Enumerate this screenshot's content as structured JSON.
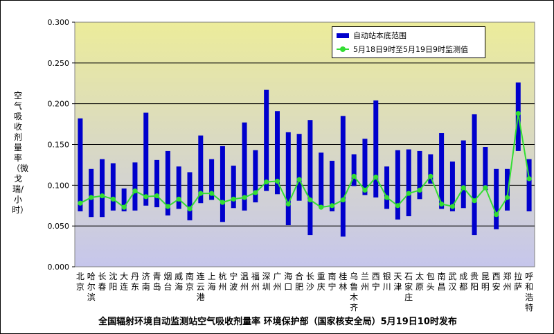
{
  "chart_data": {
    "type": "bar",
    "title": "全国辐射环境自动监测站空气吸收剂量率 环境保护部（国家核安全局）5月19日10时发布",
    "ylabel": "空气吸收剂量率（微戈瑞/小时）",
    "xlabel": "",
    "ylim": [
      0,
      0.3
    ],
    "yticks": [
      "0.000",
      "0.050",
      "0.100",
      "0.150",
      "0.200",
      "0.250",
      "0.300"
    ],
    "grid": true,
    "legend_position": "top-right",
    "colors": {
      "bar": "#0000cc",
      "line": "#33dd33",
      "bg_top": "#ecec9a",
      "bg_bottom": "#c6c6ec"
    },
    "categories": [
      "北京",
      "哈尔滨",
      "长春",
      "沈阳",
      "大连",
      "丹东",
      "济南",
      "青岛",
      "烟台",
      "威海",
      "南京",
      "连云港",
      "上海",
      "杭州",
      "宁波",
      "温州",
      "福州",
      "深圳",
      "广州",
      "海口",
      "合肥",
      "长沙",
      "重庆",
      "南宁",
      "桂林",
      "乌鲁木齐",
      "兰州",
      "西宁",
      "银川",
      "天津",
      "石家庄",
      "太原",
      "包头",
      "南昌",
      "武汉",
      "成都",
      "贵阳",
      "昆明",
      "西安",
      "郑州",
      "拉萨",
      "呼和浩特"
    ],
    "series": [
      {
        "name": "自动站本底范围",
        "kind": "range",
        "low": [
          0.068,
          0.061,
          0.061,
          0.069,
          0.068,
          0.069,
          0.075,
          0.073,
          0.063,
          0.071,
          0.057,
          0.078,
          0.082,
          0.055,
          0.072,
          0.069,
          0.079,
          0.093,
          0.089,
          0.051,
          0.081,
          0.039,
          0.073,
          0.068,
          0.037,
          0.099,
          0.088,
          0.085,
          0.071,
          0.058,
          0.062,
          0.083,
          0.102,
          0.071,
          0.068,
          0.072,
          0.039,
          0.094,
          0.046,
          0.069,
          0.142,
          0.068
        ],
        "high": [
          0.182,
          0.12,
          0.132,
          0.127,
          0.096,
          0.128,
          0.189,
          0.131,
          0.142,
          0.123,
          0.116,
          0.161,
          0.132,
          0.148,
          0.124,
          0.177,
          0.143,
          0.217,
          0.191,
          0.165,
          0.163,
          0.18,
          0.14,
          0.13,
          0.185,
          0.138,
          0.157,
          0.204,
          0.123,
          0.143,
          0.144,
          0.142,
          0.138,
          0.164,
          0.129,
          0.155,
          0.187,
          0.147,
          0.12,
          0.12,
          0.226,
          0.132
        ]
      },
      {
        "name": "5月18日9时至5月19日9时监测值",
        "kind": "line",
        "values": [
          0.078,
          0.085,
          0.087,
          0.083,
          0.073,
          0.093,
          0.086,
          0.087,
          0.074,
          0.083,
          0.071,
          0.09,
          0.09,
          0.079,
          0.083,
          0.085,
          0.091,
          0.104,
          0.105,
          0.077,
          0.107,
          0.082,
          0.073,
          0.075,
          0.082,
          0.111,
          0.094,
          0.11,
          0.085,
          0.075,
          0.09,
          0.094,
          0.111,
          0.077,
          0.074,
          0.097,
          0.081,
          0.097,
          0.064,
          0.085,
          0.188,
          0.108
        ]
      }
    ]
  }
}
